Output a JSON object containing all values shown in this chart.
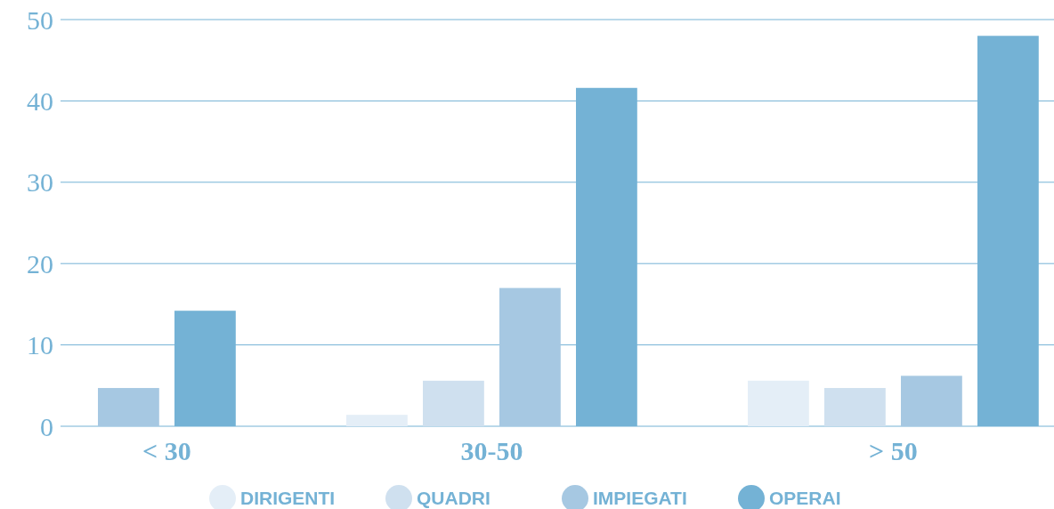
{
  "chart_data": {
    "type": "bar",
    "categories": [
      "< 30",
      "30-50",
      "> 50"
    ],
    "series": [
      {
        "name": "DIRIGENTI",
        "color": "#e4eef7",
        "values": [
          null,
          1.4,
          5.6
        ]
      },
      {
        "name": "QUADRI",
        "color": "#cfe0ef",
        "values": [
          null,
          5.6,
          4.7
        ]
      },
      {
        "name": "IMPIEGATI",
        "color": "#a6c8e2",
        "values": [
          4.7,
          17.0,
          6.2
        ]
      },
      {
        "name": "OPERAI",
        "color": "#74b2d5",
        "values": [
          14.2,
          41.6,
          48.0
        ]
      }
    ],
    "ylim": [
      0,
      50
    ],
    "yticks": [
      0,
      10,
      20,
      30,
      40,
      50
    ],
    "grid": "y",
    "legend": "bottom"
  }
}
